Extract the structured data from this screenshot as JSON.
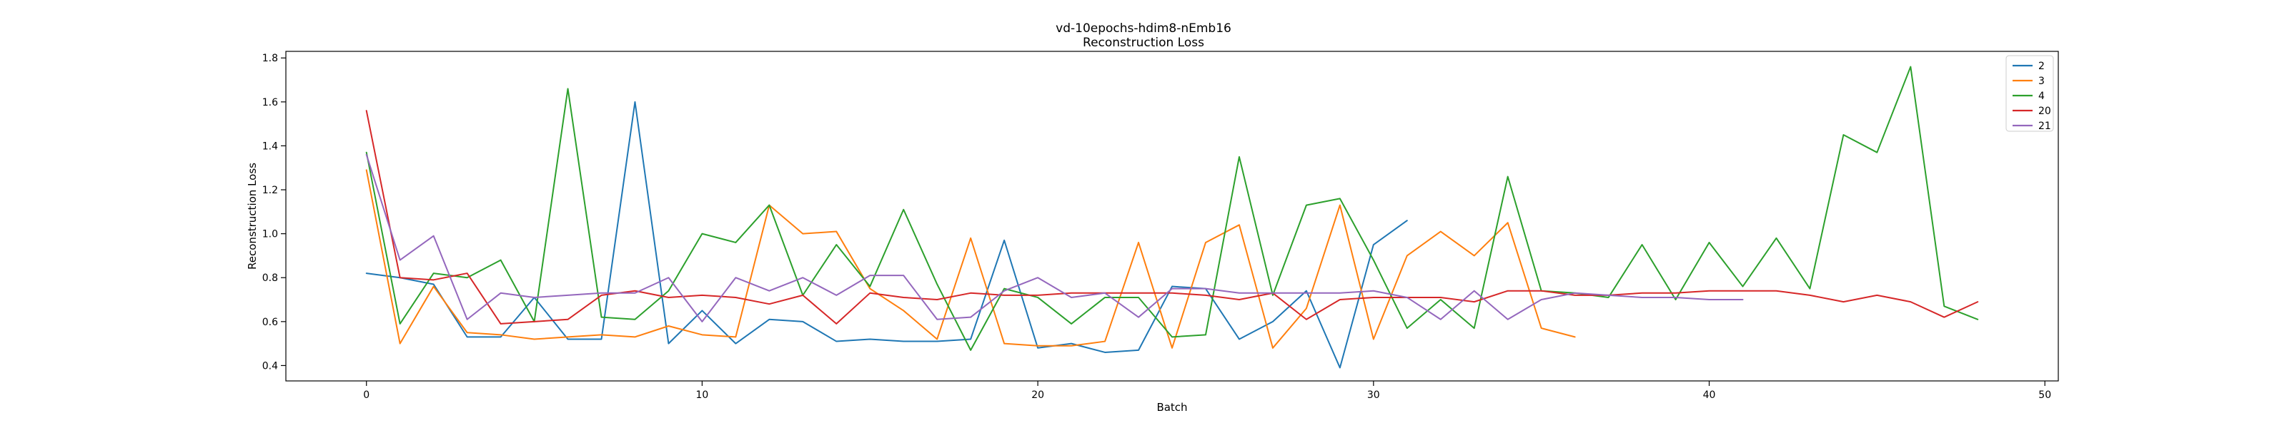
{
  "chart_data": {
    "type": "line",
    "title": "vd-10epochs-hdim8-nEmb16",
    "subtitle": "Reconstruction Loss",
    "xlabel": "Batch",
    "ylabel": "Reconstruction Loss",
    "xlim": [
      -2.4,
      50.4
    ],
    "ylim": [
      0.33,
      1.83
    ],
    "xticks": [
      0,
      10,
      20,
      30,
      40,
      50
    ],
    "yticks": [
      0.4,
      0.6,
      0.8,
      1.0,
      1.2,
      1.4,
      1.6,
      1.8
    ],
    "xtick_labels": [
      "0",
      "10",
      "20",
      "30",
      "40",
      "50"
    ],
    "ytick_labels": [
      "0.4",
      "0.6",
      "0.8",
      "1.0",
      "1.2",
      "1.4",
      "1.6",
      "1.8"
    ],
    "grid": false,
    "legend_position": "top-right",
    "series": [
      {
        "name": "2",
        "color": "#1f77b4",
        "values": [
          0.82,
          0.8,
          0.77,
          0.53,
          0.53,
          0.71,
          0.52,
          0.52,
          1.6,
          0.5,
          0.65,
          0.5,
          0.61,
          0.6,
          0.51,
          0.52,
          0.51,
          0.51,
          0.52,
          0.97,
          0.48,
          0.5,
          0.46,
          0.47,
          0.76,
          0.75,
          0.52,
          0.6,
          0.74,
          0.39,
          0.95,
          1.06
        ]
      },
      {
        "name": "3",
        "color": "#ff7f0e",
        "values": [
          1.29,
          0.5,
          0.76,
          0.55,
          0.54,
          0.52,
          0.53,
          0.54,
          0.53,
          0.58,
          0.54,
          0.53,
          1.13,
          1.0,
          1.01,
          0.75,
          0.65,
          0.52,
          0.98,
          0.5,
          0.49,
          0.49,
          0.51,
          0.96,
          0.48,
          0.96,
          1.04,
          0.48,
          0.66,
          1.13,
          0.52,
          0.9,
          1.01,
          0.9,
          1.05,
          0.57,
          0.53
        ]
      },
      {
        "name": "4",
        "color": "#2ca02c",
        "values": [
          1.37,
          0.59,
          0.82,
          0.8,
          0.88,
          0.6,
          1.66,
          0.62,
          0.61,
          0.74,
          1.0,
          0.96,
          1.13,
          0.72,
          0.95,
          0.76,
          1.11,
          0.77,
          0.47,
          0.75,
          0.71,
          0.59,
          0.71,
          0.71,
          0.53,
          0.54,
          1.35,
          0.72,
          1.13,
          1.16,
          0.88,
          0.57,
          0.7,
          0.57,
          1.26,
          0.74,
          0.73,
          0.71,
          0.95,
          0.7,
          0.96,
          0.76,
          0.98,
          0.75,
          1.45,
          1.37,
          1.76,
          0.67,
          0.61
        ]
      },
      {
        "name": "20",
        "color": "#d62728",
        "values": [
          1.56,
          0.8,
          0.79,
          0.82,
          0.59,
          0.6,
          0.61,
          0.72,
          0.74,
          0.71,
          0.72,
          0.71,
          0.68,
          0.72,
          0.59,
          0.73,
          0.71,
          0.7,
          0.73,
          0.72,
          0.72,
          0.73,
          0.73,
          0.73,
          0.73,
          0.72,
          0.7,
          0.73,
          0.61,
          0.7,
          0.71,
          0.71,
          0.71,
          0.69,
          0.74,
          0.74,
          0.72,
          0.72,
          0.73,
          0.73,
          0.74,
          0.74,
          0.74,
          0.72,
          0.69,
          0.72,
          0.69,
          0.62,
          0.69
        ]
      },
      {
        "name": "21",
        "color": "#9467bd",
        "values": [
          1.36,
          0.88,
          0.99,
          0.61,
          0.73,
          0.71,
          0.72,
          0.73,
          0.73,
          0.8,
          0.6,
          0.8,
          0.74,
          0.8,
          0.72,
          0.81,
          0.81,
          0.61,
          0.62,
          0.74,
          0.8,
          0.71,
          0.73,
          0.62,
          0.75,
          0.75,
          0.73,
          0.73,
          0.73,
          0.73,
          0.74,
          0.71,
          0.61,
          0.74,
          0.61,
          0.7,
          0.73,
          0.72,
          0.71,
          0.71,
          0.7,
          0.7
        ]
      }
    ]
  }
}
